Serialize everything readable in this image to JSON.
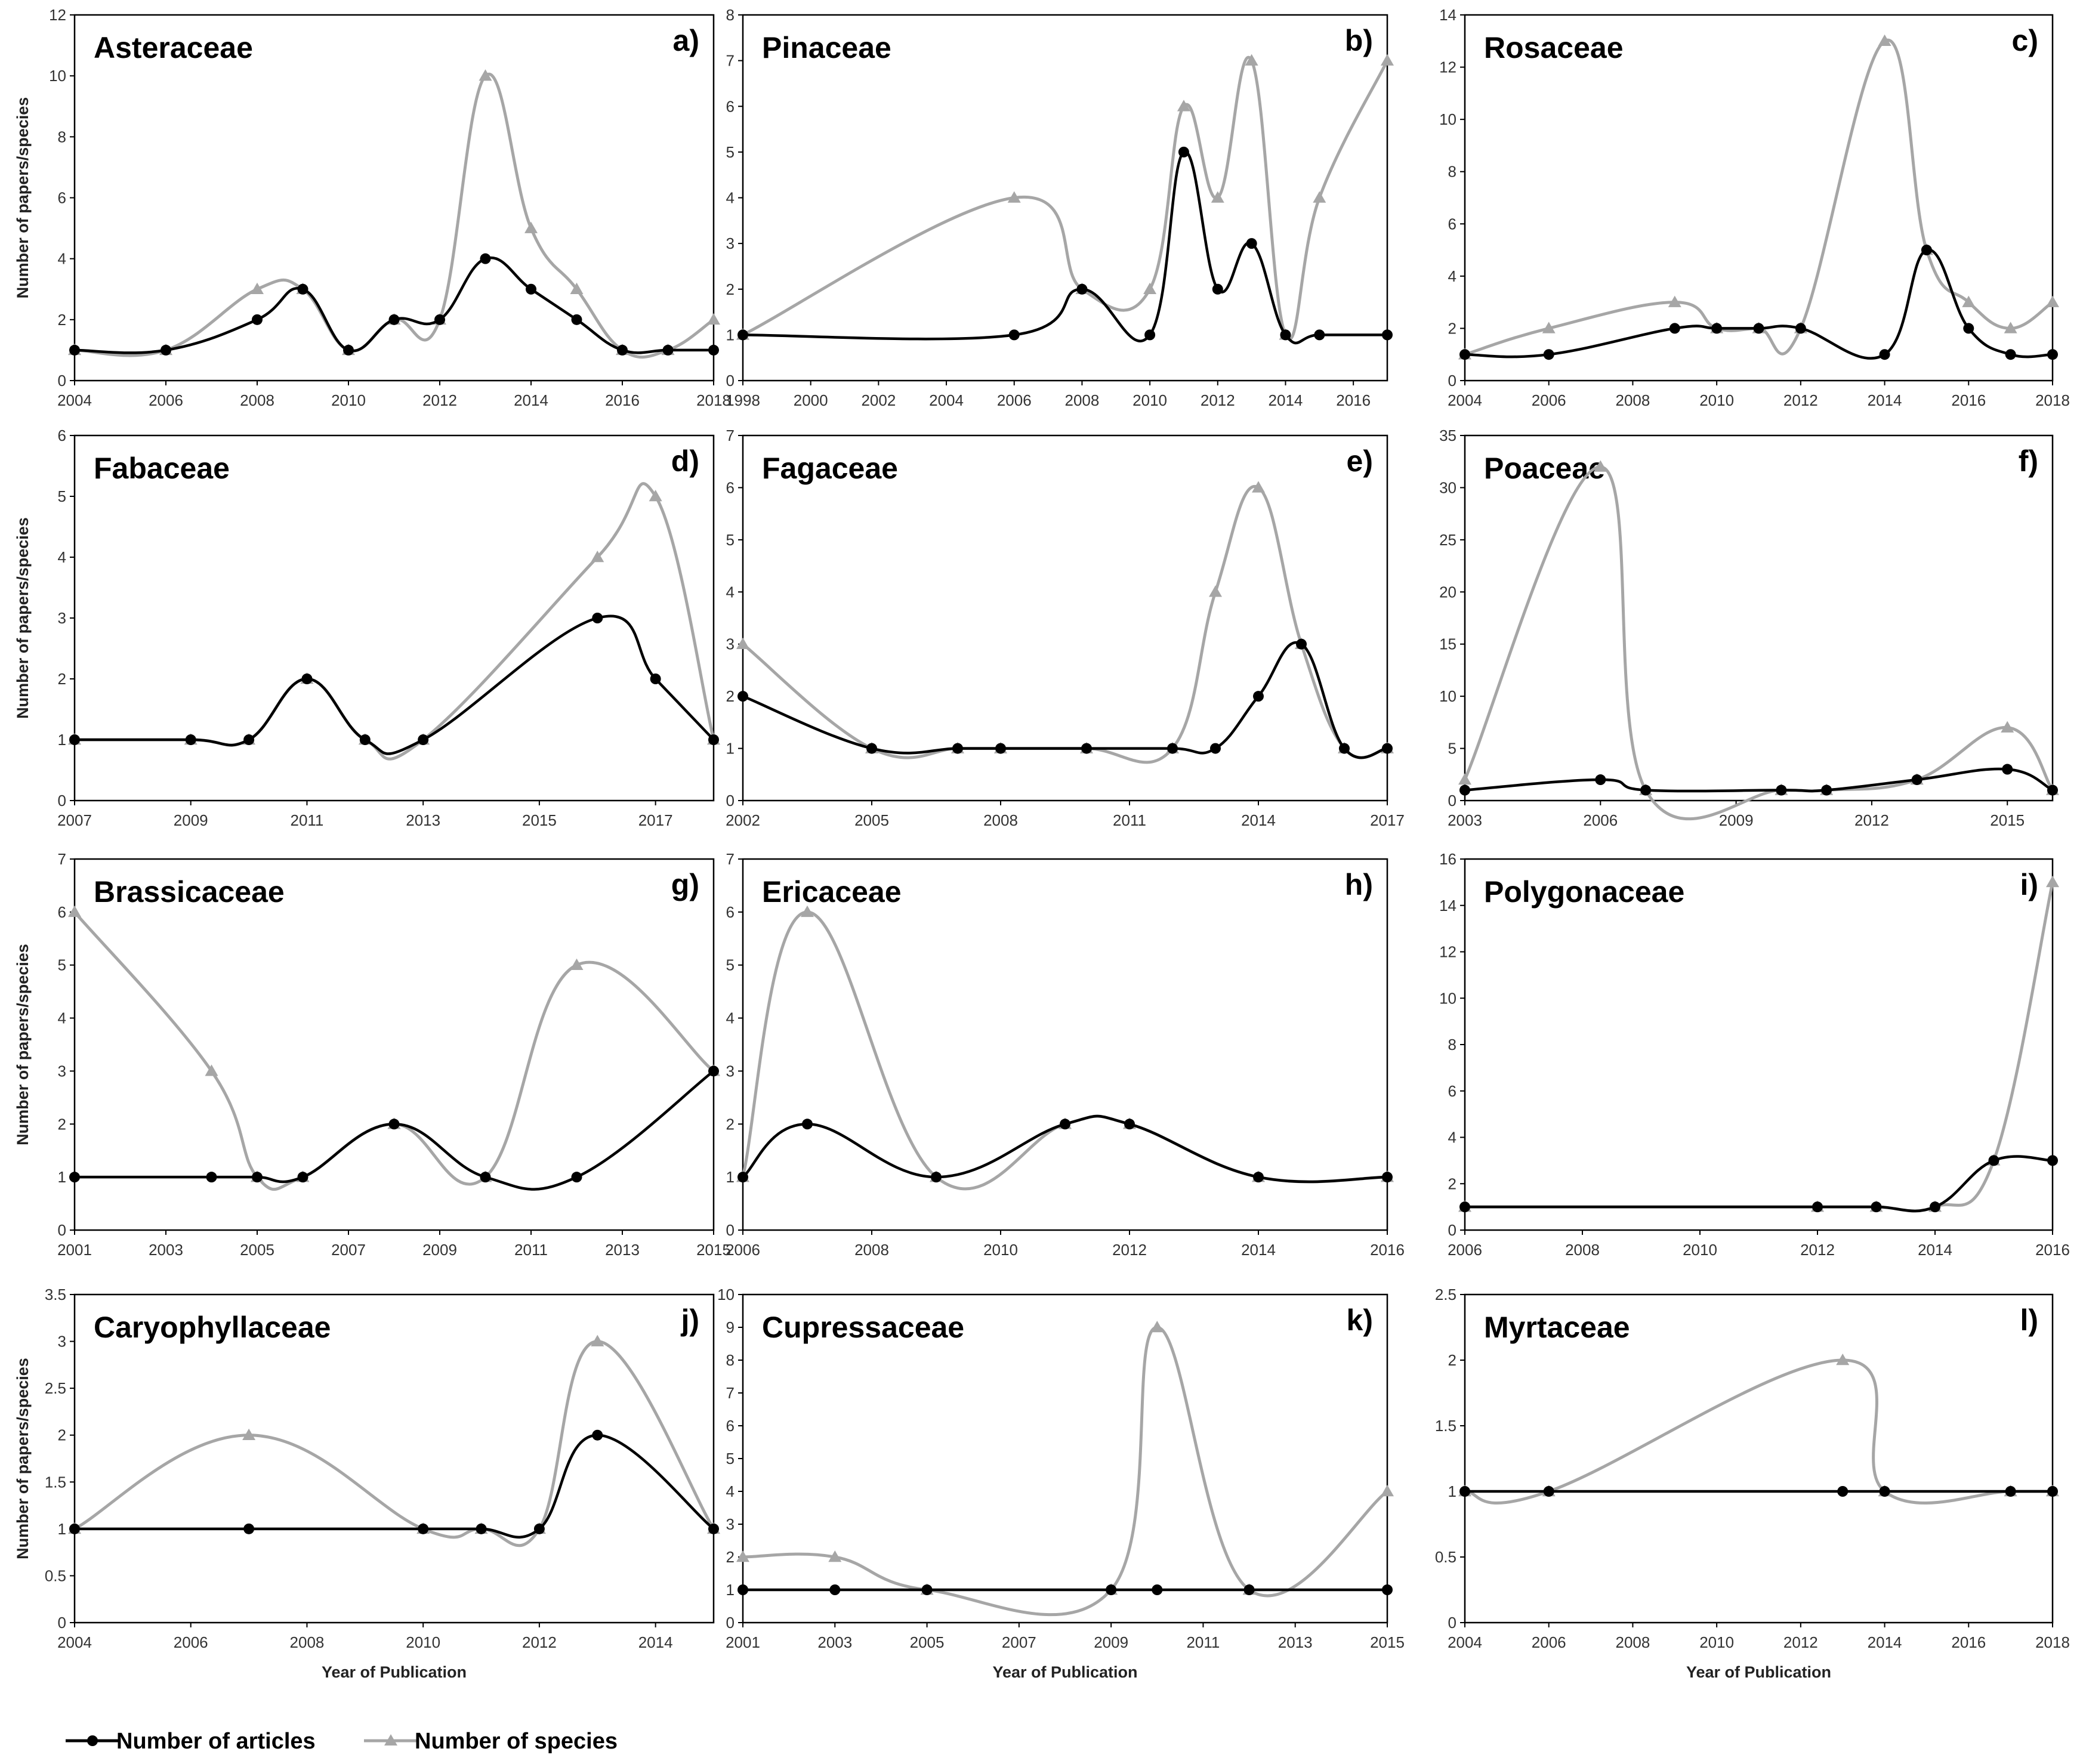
{
  "figure": {
    "legend": {
      "articles_label": "Number of articles",
      "species_label": "Number of species"
    },
    "colors": {
      "articles": "#000000",
      "species": "#a6a6a6",
      "frame": "#000000"
    }
  },
  "chart_data": [
    {
      "id": "a",
      "type": "line",
      "title": "Asteraceae",
      "letter": "a)",
      "xlabel": "",
      "ylabel": "Number of papers/species",
      "xlim": [
        2004,
        2018
      ],
      "xticks": [
        2004,
        2006,
        2008,
        2010,
        2012,
        2014,
        2016,
        2018
      ],
      "ylim": [
        0,
        12
      ],
      "yticks": [
        0,
        2,
        4,
        6,
        8,
        10,
        12
      ],
      "series": [
        {
          "name": "Number of articles",
          "x": [
            2004,
            2006,
            2008,
            2009,
            2010,
            2011,
            2012,
            2013,
            2014,
            2015,
            2016,
            2017,
            2018
          ],
          "y": [
            1,
            1,
            2,
            3,
            1,
            2,
            2,
            4,
            3,
            2,
            1,
            1,
            1
          ]
        },
        {
          "name": "Number of species",
          "x": [
            2004,
            2006,
            2008,
            2009,
            2010,
            2011,
            2012,
            2013,
            2014,
            2015,
            2016,
            2017,
            2018
          ],
          "y": [
            1,
            1,
            3,
            3,
            1,
            2,
            2,
            10,
            5,
            3,
            1,
            1,
            2
          ]
        }
      ]
    },
    {
      "id": "b",
      "type": "line",
      "title": "Pinaceae",
      "letter": "b)",
      "xlabel": "",
      "ylabel": "",
      "xlim": [
        1998,
        2017
      ],
      "xticks": [
        1998,
        2000,
        2002,
        2004,
        2006,
        2008,
        2010,
        2012,
        2014,
        2016
      ],
      "ylim": [
        0,
        8
      ],
      "yticks": [
        0,
        1,
        2,
        3,
        4,
        5,
        6,
        7,
        8
      ],
      "series": [
        {
          "name": "Number of articles",
          "x": [
            1998,
            2006,
            2008,
            2010,
            2011,
            2012,
            2013,
            2014,
            2015,
            2017
          ],
          "y": [
            1,
            1,
            2,
            1,
            5,
            2,
            3,
            1,
            1,
            1
          ]
        },
        {
          "name": "Number of species",
          "x": [
            1998,
            2006,
            2008,
            2010,
            2011,
            2012,
            2013,
            2014,
            2015,
            2017
          ],
          "y": [
            1,
            4,
            2,
            2,
            6,
            4,
            7,
            1,
            4,
            7
          ]
        }
      ]
    },
    {
      "id": "c",
      "type": "line",
      "title": "Rosaceae",
      "letter": "c)",
      "xlabel": "",
      "ylabel": "",
      "xlim": [
        2004,
        2018
      ],
      "xticks": [
        2004,
        2006,
        2008,
        2010,
        2012,
        2014,
        2016,
        2018
      ],
      "ylim": [
        0,
        14
      ],
      "yticks": [
        0,
        2,
        4,
        6,
        8,
        10,
        12,
        14
      ],
      "series": [
        {
          "name": "Number of articles",
          "x": [
            2004,
            2006,
            2009,
            2010,
            2011,
            2012,
            2014,
            2015,
            2016,
            2017,
            2018
          ],
          "y": [
            1,
            1,
            2,
            2,
            2,
            2,
            1,
            5,
            2,
            1,
            1
          ]
        },
        {
          "name": "Number of species",
          "x": [
            2004,
            2006,
            2009,
            2010,
            2011,
            2012,
            2014,
            2015,
            2016,
            2017,
            2018
          ],
          "y": [
            1,
            2,
            3,
            2,
            2,
            2,
            13,
            5,
            3,
            2,
            3
          ]
        }
      ]
    },
    {
      "id": "d",
      "type": "line",
      "title": "Fabaceae",
      "letter": "d)",
      "xlabel": "",
      "ylabel": "Number of papers/species",
      "xlim": [
        2007,
        2018
      ],
      "xticks": [
        2007,
        2009,
        2011,
        2013,
        2015,
        2017
      ],
      "ylim": [
        0,
        6
      ],
      "yticks": [
        0,
        1,
        2,
        3,
        4,
        5,
        6
      ],
      "series": [
        {
          "name": "Number of articles",
          "x": [
            2007,
            2009,
            2010,
            2011,
            2012,
            2013,
            2016,
            2017,
            2018
          ],
          "y": [
            1,
            1,
            1,
            2,
            1,
            1,
            3,
            2,
            1
          ]
        },
        {
          "name": "Number of species",
          "x": [
            2007,
            2009,
            2010,
            2011,
            2012,
            2013,
            2016,
            2017,
            2018
          ],
          "y": [
            1,
            1,
            1,
            2,
            1,
            1,
            4,
            5,
            1
          ]
        }
      ]
    },
    {
      "id": "e",
      "type": "line",
      "title": "Fagaceae",
      "letter": "e)",
      "xlabel": "",
      "ylabel": "",
      "xlim": [
        2002,
        2017
      ],
      "xticks": [
        2002,
        2005,
        2008,
        2011,
        2014,
        2017
      ],
      "ylim": [
        0,
        7
      ],
      "yticks": [
        0,
        1,
        2,
        3,
        4,
        5,
        6,
        7
      ],
      "series": [
        {
          "name": "Number of articles",
          "x": [
            2002,
            2005,
            2007,
            2008,
            2010,
            2012,
            2013,
            2014,
            2015,
            2016,
            2017
          ],
          "y": [
            2,
            1,
            1,
            1,
            1,
            1,
            1,
            2,
            3,
            1,
            1
          ]
        },
        {
          "name": "Number of species",
          "x": [
            2002,
            2005,
            2007,
            2008,
            2010,
            2012,
            2013,
            2014,
            2015,
            2016,
            2017
          ],
          "y": [
            3,
            1,
            1,
            1,
            1,
            1,
            4,
            6,
            3,
            1,
            1
          ]
        }
      ]
    },
    {
      "id": "f",
      "type": "line",
      "title": "Poaceae",
      "letter": "f)",
      "xlabel": "",
      "ylabel": "",
      "xlim": [
        2003,
        2016
      ],
      "xticks": [
        2003,
        2006,
        2009,
        2012,
        2015
      ],
      "ylim": [
        0,
        35
      ],
      "yticks": [
        0,
        5,
        10,
        15,
        20,
        25,
        30,
        35
      ],
      "series": [
        {
          "name": "Number of articles",
          "x": [
            2003,
            2006,
            2007,
            2010,
            2011,
            2013,
            2015,
            2016
          ],
          "y": [
            1,
            2,
            1,
            1,
            1,
            2,
            3,
            1
          ]
        },
        {
          "name": "Number of species",
          "x": [
            2003,
            2006,
            2007,
            2010,
            2011,
            2013,
            2015,
            2016
          ],
          "y": [
            2,
            32,
            1,
            1,
            1,
            2,
            7,
            1
          ]
        }
      ]
    },
    {
      "id": "g",
      "type": "line",
      "title": "Brassicaceae",
      "letter": "g)",
      "xlabel": "",
      "ylabel": "Number of papers/species",
      "xlim": [
        2001,
        2015
      ],
      "xticks": [
        2001,
        2003,
        2005,
        2007,
        2009,
        2011,
        2013,
        2015
      ],
      "ylim": [
        0,
        7
      ],
      "yticks": [
        0,
        1,
        2,
        3,
        4,
        5,
        6,
        7
      ],
      "series": [
        {
          "name": "Number of articles",
          "x": [
            2001,
            2004,
            2005,
            2006,
            2008,
            2010,
            2012,
            2015
          ],
          "y": [
            1,
            1,
            1,
            1,
            2,
            1,
            1,
            3
          ]
        },
        {
          "name": "Number of species",
          "x": [
            2001,
            2004,
            2005,
            2006,
            2008,
            2010,
            2012,
            2015
          ],
          "y": [
            6,
            3,
            1,
            1,
            2,
            1,
            5,
            3
          ]
        }
      ]
    },
    {
      "id": "h",
      "type": "line",
      "title": "Ericaceae",
      "letter": "h)",
      "xlabel": "",
      "ylabel": "",
      "xlim": [
        2006,
        2016
      ],
      "xticks": [
        2006,
        2008,
        2010,
        2012,
        2014,
        2016
      ],
      "ylim": [
        0,
        7
      ],
      "yticks": [
        0,
        1,
        2,
        3,
        4,
        5,
        6,
        7
      ],
      "series": [
        {
          "name": "Number of articles",
          "x": [
            2006,
            2007,
            2009,
            2011,
            2012,
            2014,
            2016
          ],
          "y": [
            1,
            2,
            1,
            2,
            2,
            1,
            1
          ]
        },
        {
          "name": "Number of species",
          "x": [
            2006,
            2007,
            2009,
            2011,
            2012,
            2014,
            2016
          ],
          "y": [
            1,
            6,
            1,
            2,
            2,
            1,
            1
          ]
        }
      ]
    },
    {
      "id": "i",
      "type": "line",
      "title": "Polygonaceae",
      "letter": "i)",
      "xlabel": "",
      "ylabel": "",
      "xlim": [
        2006,
        2016
      ],
      "xticks": [
        2006,
        2008,
        2010,
        2012,
        2014,
        2016
      ],
      "ylim": [
        0,
        16
      ],
      "yticks": [
        0,
        2,
        4,
        6,
        8,
        10,
        12,
        14,
        16
      ],
      "series": [
        {
          "name": "Number of articles",
          "x": [
            2006,
            2012,
            2013,
            2014,
            2015,
            2016
          ],
          "y": [
            1,
            1,
            1,
            1,
            3,
            3
          ]
        },
        {
          "name": "Number of species",
          "x": [
            2006,
            2012,
            2013,
            2014,
            2015,
            2016
          ],
          "y": [
            1,
            1,
            1,
            1,
            3,
            15
          ]
        }
      ]
    },
    {
      "id": "j",
      "type": "line",
      "title": "Caryophyllaceae",
      "letter": "j)",
      "xlabel": "Year of Publication",
      "ylabel": "Number of papers/species",
      "xlim": [
        2004,
        2015
      ],
      "xticks": [
        2004,
        2006,
        2008,
        2010,
        2012,
        2014
      ],
      "ylim": [
        0,
        3.5
      ],
      "yticks": [
        0,
        0.5,
        1,
        1.5,
        2,
        2.5,
        3,
        3.5
      ],
      "series": [
        {
          "name": "Number of articles",
          "x": [
            2004,
            2007,
            2010,
            2011,
            2012,
            2013,
            2015
          ],
          "y": [
            1,
            1,
            1,
            1,
            1,
            2,
            1
          ]
        },
        {
          "name": "Number of species",
          "x": [
            2004,
            2007,
            2010,
            2011,
            2012,
            2013,
            2015
          ],
          "y": [
            1,
            2,
            1,
            1,
            1,
            3,
            1
          ]
        }
      ]
    },
    {
      "id": "k",
      "type": "line",
      "title": "Cupressaceae",
      "letter": "k)",
      "xlabel": "Year of Publication",
      "ylabel": "",
      "xlim": [
        2001,
        2015
      ],
      "xticks": [
        2001,
        2003,
        2005,
        2007,
        2009,
        2011,
        2013,
        2015
      ],
      "ylim": [
        0,
        10
      ],
      "yticks": [
        0,
        1,
        2,
        3,
        4,
        5,
        6,
        7,
        8,
        9,
        10
      ],
      "series": [
        {
          "name": "Number of articles",
          "x": [
            2001,
            2003,
            2005,
            2009,
            2010,
            2012,
            2015
          ],
          "y": [
            1,
            1,
            1,
            1,
            1,
            1,
            1
          ]
        },
        {
          "name": "Number of species",
          "x": [
            2001,
            2003,
            2005,
            2009,
            2010,
            2012,
            2015
          ],
          "y": [
            2,
            2,
            1,
            1,
            9,
            1,
            4
          ]
        }
      ]
    },
    {
      "id": "l",
      "type": "line",
      "title": "Myrtaceae",
      "letter": "l)",
      "xlabel": "Year of Publication",
      "ylabel": "",
      "xlim": [
        2004,
        2018
      ],
      "xticks": [
        2004,
        2006,
        2008,
        2010,
        2012,
        2014,
        2016,
        2018
      ],
      "ylim": [
        0,
        2.5
      ],
      "yticks": [
        0,
        0.5,
        1,
        1.5,
        2,
        2.5
      ],
      "series": [
        {
          "name": "Number of articles",
          "x": [
            2004,
            2006,
            2013,
            2014,
            2017,
            2018
          ],
          "y": [
            1,
            1,
            1,
            1,
            1,
            1
          ]
        },
        {
          "name": "Number of species",
          "x": [
            2004,
            2006,
            2013,
            2014,
            2017,
            2018
          ],
          "y": [
            1,
            1,
            2,
            1,
            1,
            1
          ]
        }
      ]
    }
  ]
}
